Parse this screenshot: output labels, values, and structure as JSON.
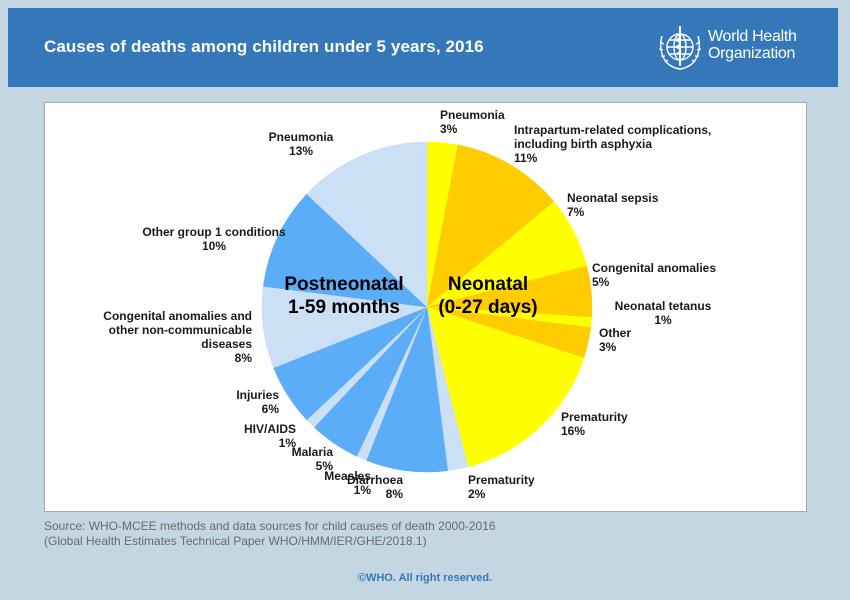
{
  "header": {
    "title": "Causes of deaths among children under 5 years, 2016",
    "logo_line1": "World Health",
    "logo_line2": "Organization",
    "logo_icon": "who-emblem-icon"
  },
  "colors": {
    "header_bg": "#3578b9",
    "page_bg": "#c5d6e3",
    "neonatal_yellow": "#ffff00",
    "neonatal_orange": "#ffcc00",
    "postneonatal_light": "#cce0f5",
    "postneonatal_blue": "#5badf8"
  },
  "chart_data": {
    "type": "pie",
    "title": "Causes of deaths among children under 5 years, 2016",
    "start_angle": "12 o'clock",
    "direction": "clockwise",
    "groups": [
      {
        "name": "Neonatal\n(0-27 days)",
        "line1": "Neonatal",
        "line2": "(0-27 days)"
      },
      {
        "name": "Postneonatal\n1-59 months",
        "line1": "Postneonatal",
        "line2": "1-59 months"
      }
    ],
    "slices": [
      {
        "group": "Neonatal",
        "label": "Pneumonia",
        "value": 3,
        "pct": "3%",
        "color": "#ffff00"
      },
      {
        "group": "Neonatal",
        "label": "Intrapartum-related complications, including birth asphyxia",
        "lines": [
          "Intrapartum-related complications,",
          "including birth asphyxia"
        ],
        "value": 11,
        "pct": "11%",
        "color": "#ffcc00"
      },
      {
        "group": "Neonatal",
        "label": "Neonatal sepsis",
        "value": 7,
        "pct": "7%",
        "color": "#ffff00"
      },
      {
        "group": "Neonatal",
        "label": "Congenital anomalies",
        "value": 5,
        "pct": "5%",
        "color": "#ffcc00"
      },
      {
        "group": "Neonatal",
        "label": "Neonatal tetanus",
        "value": 1,
        "pct": "1%",
        "color": "#ffff00"
      },
      {
        "group": "Neonatal",
        "label": "Other",
        "value": 3,
        "pct": "3%",
        "color": "#ffcc00"
      },
      {
        "group": "Neonatal",
        "label": "Prematurity",
        "value": 16,
        "pct": "16%",
        "color": "#ffff00"
      },
      {
        "group": "Postneonatal",
        "label": "Prematurity",
        "value": 2,
        "pct": "2%",
        "color": "#cce0f5"
      },
      {
        "group": "Postneonatal",
        "label": "Diarrhoea",
        "value": 8,
        "pct": "8%",
        "color": "#5badf8"
      },
      {
        "group": "Postneonatal",
        "label": "Measles",
        "value": 1,
        "pct": "1%",
        "color": "#cce0f5"
      },
      {
        "group": "Postneonatal",
        "label": "Malaria",
        "value": 5,
        "pct": "5%",
        "color": "#5badf8"
      },
      {
        "group": "Postneonatal",
        "label": "HIV/AIDS",
        "value": 1,
        "pct": "1%",
        "color": "#cce0f5"
      },
      {
        "group": "Postneonatal",
        "label": "Injuries",
        "value": 6,
        "pct": "6%",
        "color": "#5badf8"
      },
      {
        "group": "Postneonatal",
        "label": "Congenital anomalies and other non-communicable diseases",
        "lines": [
          "Congenital anomalies and",
          "other non-communicable",
          "diseases"
        ],
        "value": 8,
        "pct": "8%",
        "color": "#cce0f5"
      },
      {
        "group": "Postneonatal",
        "label": "Other group 1 conditions",
        "value": 10,
        "pct": "10%",
        "color": "#5badf8"
      },
      {
        "group": "Postneonatal",
        "label": "Pneumonia",
        "value": 13,
        "pct": "13%",
        "color": "#cce0f5"
      }
    ]
  },
  "footer": {
    "source_line1": "Source: WHO-MCEE methods and data sources for child causes of death 2000-2016",
    "source_line2": "(Global Health Estimates Technical Paper WHO/HMM/IER/GHE/2018.1)",
    "copyright": "©WHO. All right reserved."
  }
}
